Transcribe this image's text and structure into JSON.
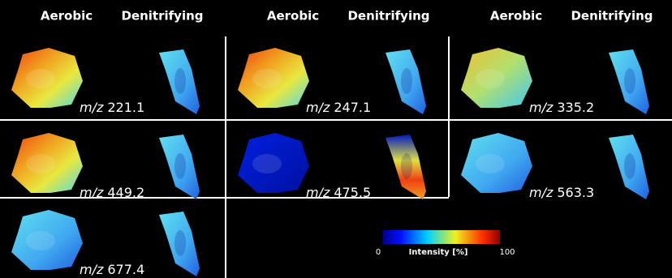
{
  "columns": [
    {
      "left": "Aerobic",
      "right": "Denitrifying"
    },
    {
      "left": "Aerobic",
      "right": "Denitrifying"
    },
    {
      "left": "Aerobic",
      "right": "Denitrifying"
    }
  ],
  "panels": [
    {
      "ion_label": "m/z",
      "mz": 221.1
    },
    {
      "ion_label": "m/z",
      "mz": 247.1
    },
    {
      "ion_label": "m/z",
      "mz": 335.2
    },
    {
      "ion_label": "m/z",
      "mz": 449.2
    },
    {
      "ion_label": "m/z",
      "mz": 475.5
    },
    {
      "ion_label": "m/z",
      "mz": 563.3
    },
    {
      "ion_label": "m/z",
      "mz": 677.4
    }
  ],
  "colorbar": {
    "min": 0,
    "label": "Intensity [%]",
    "max": 100
  }
}
